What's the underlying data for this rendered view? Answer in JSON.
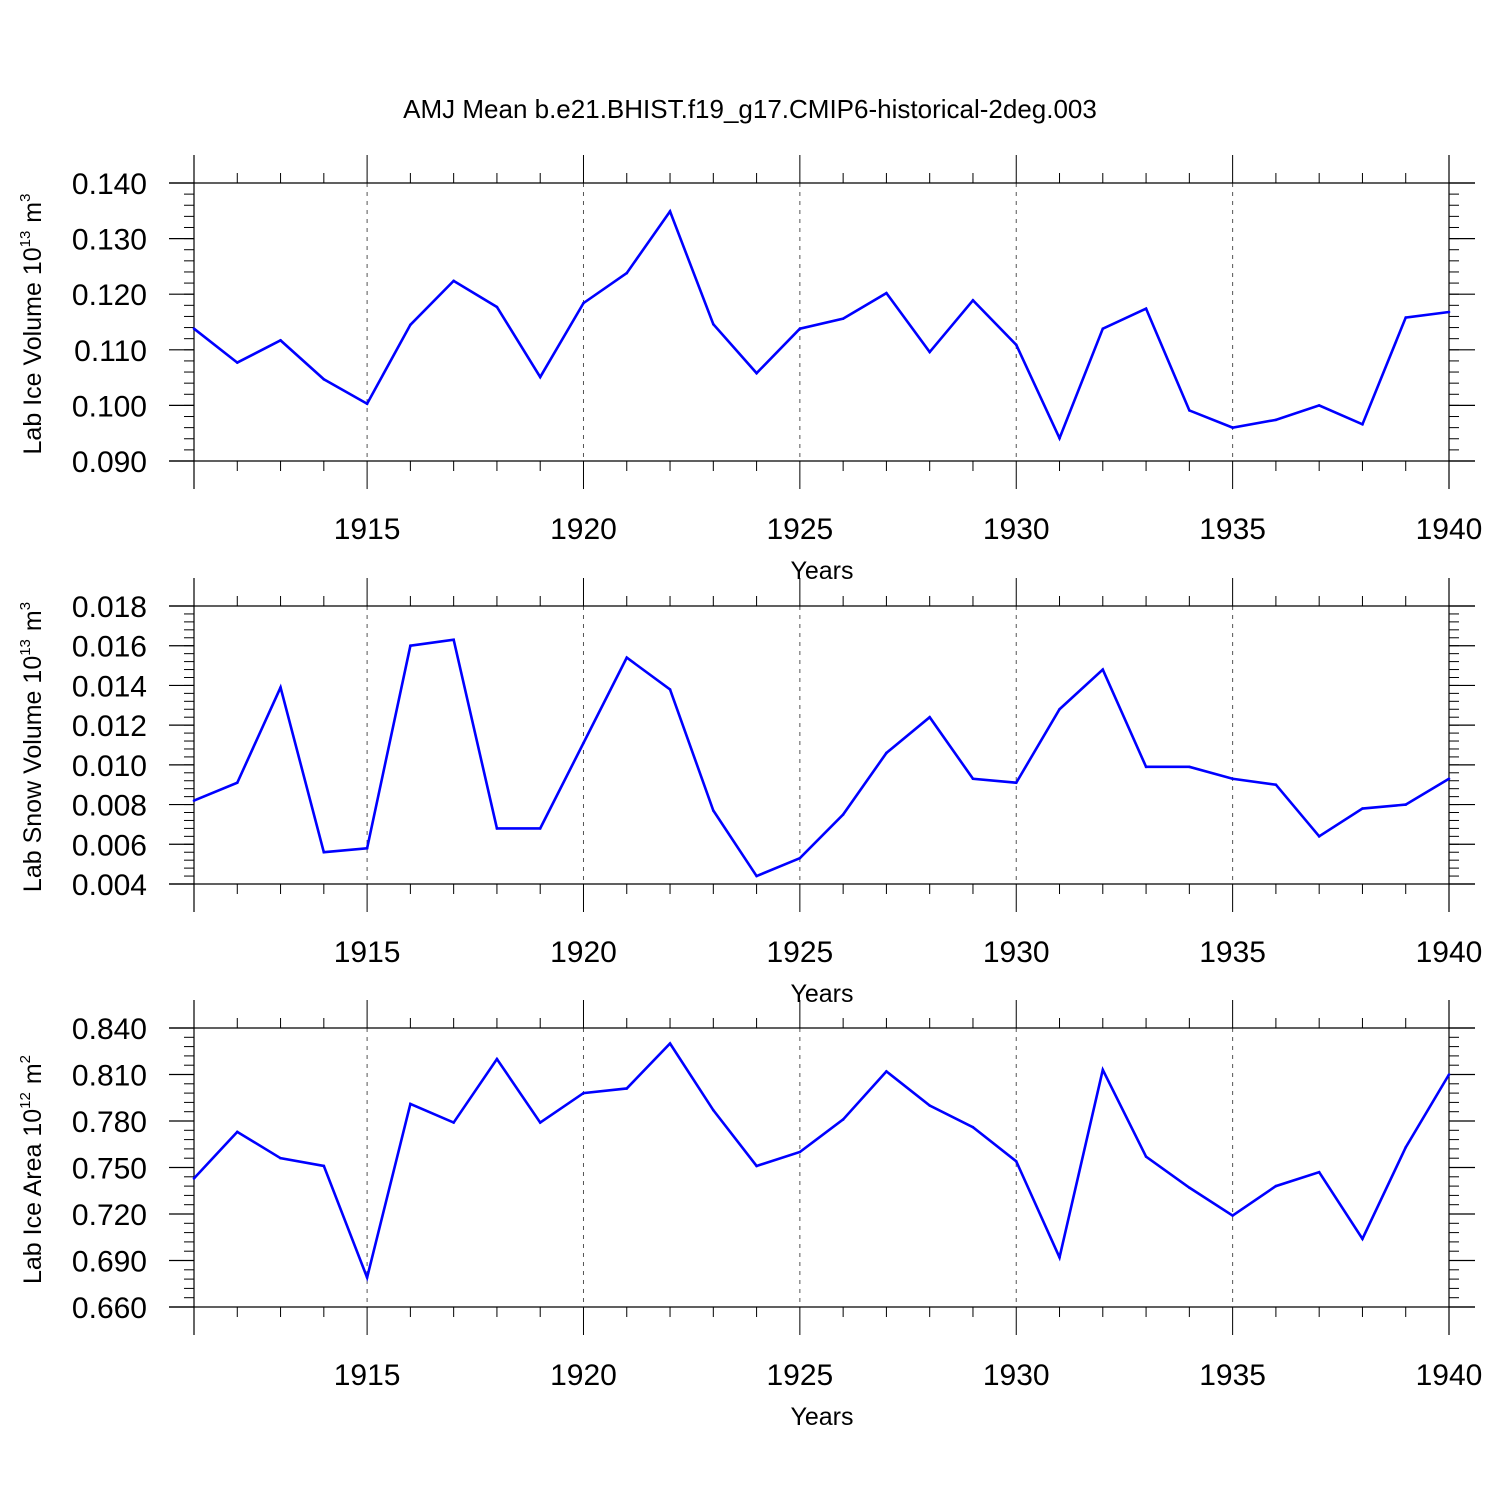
{
  "figure": {
    "title": "AMJ Mean b.e21.BHIST.f19_g17.CMIP6-historical-2deg.003"
  },
  "style": {
    "line_color": "#0000ff",
    "axis_color": "#000000",
    "grid_color": "#555555"
  },
  "chart_data": [
    {
      "type": "line",
      "ylabel": "Lab Ice Volume 10",
      "ylabel_exp": "13",
      "ylabel_unit": "m",
      "ylabel_unit_exp": "3",
      "xlabel": "Years",
      "xlim": [
        1911,
        1940
      ],
      "ylim": [
        0.09,
        0.14
      ],
      "xticks": [
        1915,
        1920,
        1925,
        1930,
        1935,
        1940
      ],
      "xtick_labels": [
        "1915",
        "1920",
        "1925",
        "1930",
        "1935",
        "1940"
      ],
      "yticks": [
        "0.090",
        "0.100",
        "0.110",
        "0.120",
        "0.130",
        "0.140"
      ],
      "ytick_values": [
        0.09,
        0.1,
        0.11,
        0.12,
        0.13,
        0.14
      ],
      "yminor_step": 0.002,
      "grid": "dashed vertical at major x ticks",
      "x": [
        1911,
        1912,
        1913,
        1914,
        1915,
        1916,
        1917,
        1918,
        1919,
        1920,
        1921,
        1922,
        1923,
        1924,
        1925,
        1926,
        1927,
        1928,
        1929,
        1930,
        1931,
        1932,
        1933,
        1934,
        1935,
        1936,
        1937,
        1938,
        1939,
        1940
      ],
      "series": [
        {
          "values": [
            0.1138,
            0.1077,
            0.1117,
            0.1047,
            0.1003,
            0.1145,
            0.1224,
            0.1177,
            0.1051,
            0.1184,
            0.1238,
            0.1349,
            0.1146,
            0.1058,
            0.1138,
            0.1156,
            0.1202,
            0.1096,
            0.1189,
            0.1109,
            0.0941,
            0.1138,
            0.1174,
            0.0991,
            0.096,
            0.0974,
            0.1,
            0.0966,
            0.1158,
            0.1168
          ]
        }
      ]
    },
    {
      "type": "line",
      "ylabel": "Lab Snow Volume 10",
      "ylabel_exp": "13",
      "ylabel_unit": "m",
      "ylabel_unit_exp": "3",
      "xlabel": "Years",
      "xlim": [
        1911,
        1940
      ],
      "ylim": [
        0.004,
        0.018
      ],
      "xticks": [
        1915,
        1920,
        1925,
        1930,
        1935,
        1940
      ],
      "xtick_labels": [
        "1915",
        "1920",
        "1925",
        "1930",
        "1935",
        "1940"
      ],
      "yticks": [
        "0.004",
        "0.006",
        "0.008",
        "0.010",
        "0.012",
        "0.014",
        "0.016",
        "0.018"
      ],
      "ytick_values": [
        0.004,
        0.006,
        0.008,
        0.01,
        0.012,
        0.014,
        0.016,
        0.018
      ],
      "yminor_step": 0.0004,
      "grid": "dashed vertical at major x ticks",
      "x": [
        1911,
        1912,
        1913,
        1914,
        1915,
        1916,
        1917,
        1918,
        1919,
        1920,
        1921,
        1922,
        1923,
        1924,
        1925,
        1926,
        1927,
        1928,
        1929,
        1930,
        1931,
        1932,
        1933,
        1934,
        1935,
        1936,
        1937,
        1938,
        1939,
        1940
      ],
      "series": [
        {
          "values": [
            0.0082,
            0.0091,
            0.0139,
            0.0056,
            0.0058,
            0.016,
            0.0163,
            0.0068,
            0.0068,
            0.0111,
            0.0154,
            0.0138,
            0.0077,
            0.0044,
            0.0053,
            0.0075,
            0.0106,
            0.0124,
            0.0093,
            0.0091,
            0.0128,
            0.0148,
            0.0099,
            0.0099,
            0.0093,
            0.009,
            0.0064,
            0.0078,
            0.008,
            0.0093
          ]
        }
      ]
    },
    {
      "type": "line",
      "ylabel": "Lab Ice Area 10",
      "ylabel_exp": "12",
      "ylabel_unit": "m",
      "ylabel_unit_exp": "2",
      "xlabel": "Years",
      "xlim": [
        1911,
        1940
      ],
      "ylim": [
        0.66,
        0.84
      ],
      "xticks": [
        1915,
        1920,
        1925,
        1930,
        1935,
        1940
      ],
      "xtick_labels": [
        "1915",
        "1920",
        "1925",
        "1930",
        "1935",
        "1940"
      ],
      "yticks": [
        "0.660",
        "0.690",
        "0.720",
        "0.750",
        "0.780",
        "0.810",
        "0.840"
      ],
      "ytick_values": [
        0.66,
        0.69,
        0.72,
        0.75,
        0.78,
        0.81,
        0.84
      ],
      "yminor_step": 0.006,
      "grid": "dashed vertical at major x ticks",
      "x": [
        1911,
        1912,
        1913,
        1914,
        1915,
        1916,
        1917,
        1918,
        1919,
        1920,
        1921,
        1922,
        1923,
        1924,
        1925,
        1926,
        1927,
        1928,
        1929,
        1930,
        1931,
        1932,
        1933,
        1934,
        1935,
        1936,
        1937,
        1938,
        1939,
        1940
      ],
      "series": [
        {
          "values": [
            0.743,
            0.773,
            0.756,
            0.751,
            0.679,
            0.791,
            0.779,
            0.82,
            0.779,
            0.798,
            0.801,
            0.83,
            0.787,
            0.751,
            0.76,
            0.781,
            0.812,
            0.79,
            0.776,
            0.754,
            0.692,
            0.813,
            0.757,
            0.737,
            0.719,
            0.738,
            0.747,
            0.704,
            0.763,
            0.81
          ]
        }
      ]
    }
  ]
}
